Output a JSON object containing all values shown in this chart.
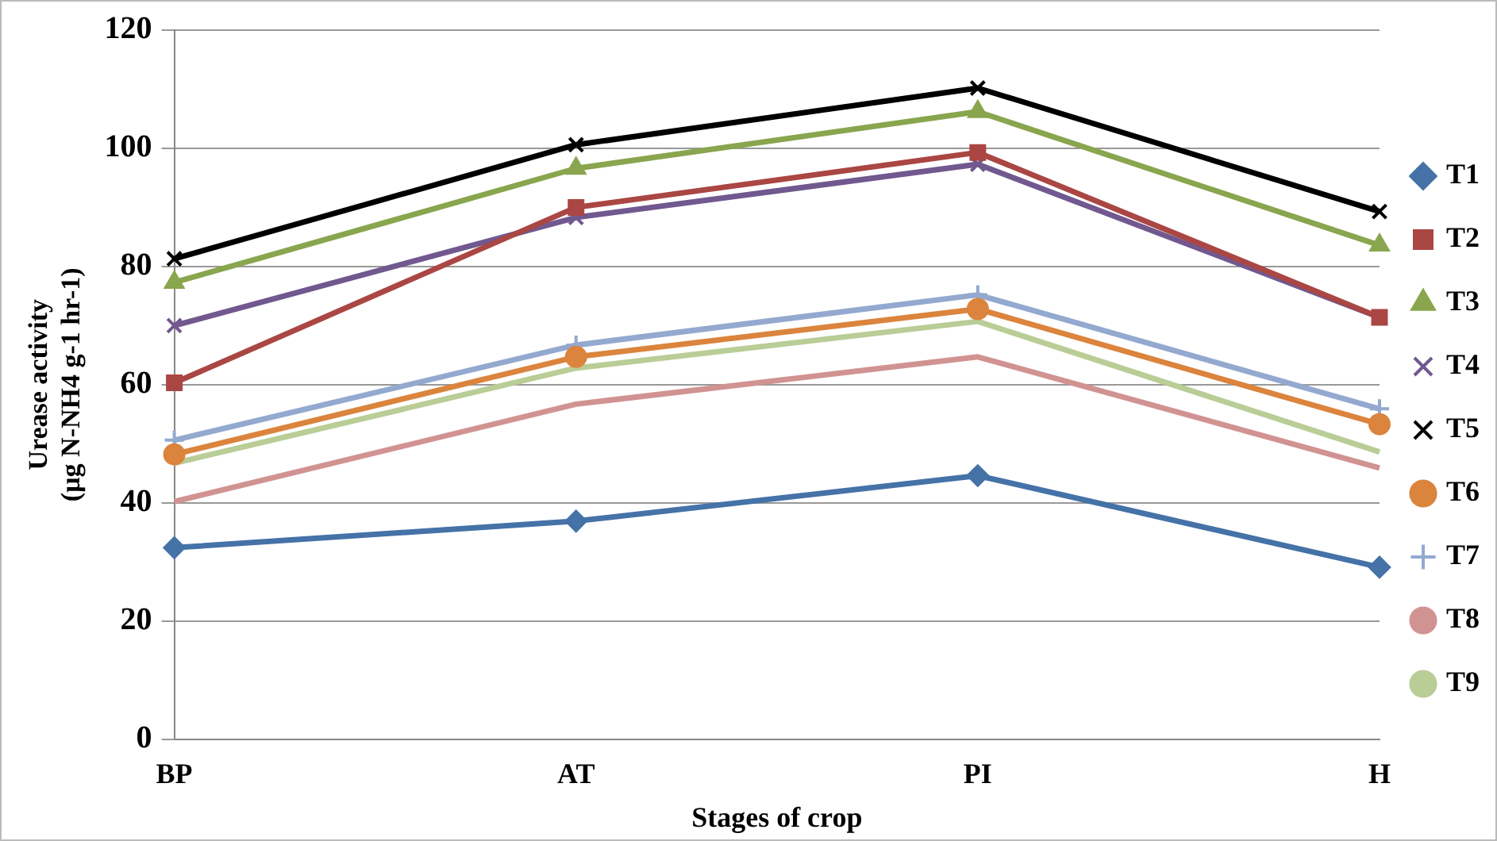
{
  "chart_data": {
    "type": "line",
    "xlabel": "Stages of crop",
    "ylabel": "Urease activity\n(µg N-NH4 g-1 hr-1)",
    "categories": [
      "BP",
      "AT",
      "PI",
      "H"
    ],
    "ylim": [
      0,
      120
    ],
    "yticks": [
      0,
      20,
      40,
      60,
      80,
      100,
      120
    ],
    "grid": "y",
    "legend": "right",
    "line_style": "solid",
    "series": [
      {
        "name": "T1",
        "color": "#4572a7",
        "marker": "diamond",
        "values": [
          32.4,
          36.9,
          44.6,
          29.1
        ]
      },
      {
        "name": "T2",
        "color": "#aa4643",
        "marker": "square",
        "values": [
          60.3,
          90.0,
          99.3,
          71.4
        ]
      },
      {
        "name": "T3",
        "color": "#89a54e",
        "marker": "triangle",
        "values": [
          77.3,
          96.6,
          106.2,
          83.6
        ]
      },
      {
        "name": "T4",
        "color": "#71588f",
        "marker": "cross",
        "values": [
          70.0,
          88.3,
          97.3,
          71.4
        ]
      },
      {
        "name": "T5",
        "color": "#000000",
        "marker": "cross",
        "values": [
          81.3,
          100.6,
          110.2,
          89.3
        ]
      },
      {
        "name": "T6",
        "color": "#db843d",
        "marker": "circle",
        "values": [
          48.2,
          64.7,
          72.8,
          53.3
        ]
      },
      {
        "name": "T7",
        "color": "#93a9cf",
        "marker": "plus",
        "values": [
          50.6,
          66.7,
          75.2,
          55.9
        ]
      },
      {
        "name": "T8",
        "color": "#d19392",
        "marker": "none",
        "values": [
          40.2,
          56.7,
          64.7,
          45.9
        ]
      },
      {
        "name": "T9",
        "color": "#b9cd96",
        "marker": "none",
        "values": [
          46.7,
          62.8,
          70.7,
          48.6
        ]
      }
    ]
  }
}
